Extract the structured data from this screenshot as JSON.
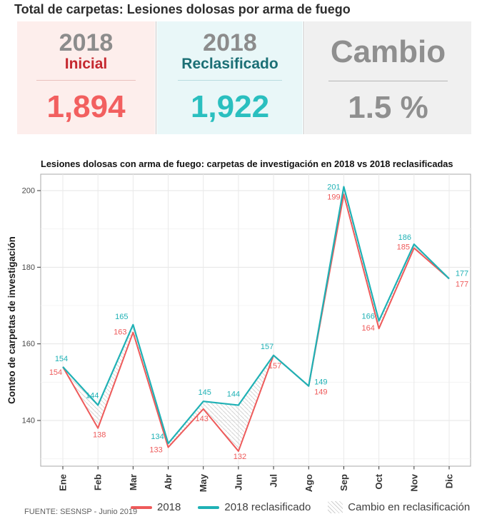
{
  "page_title": "Total de carpetas: Lesiones dolosas por arma de fuego",
  "summary_cards": {
    "initial": {
      "year": "2018",
      "label": "Inicial",
      "value": "1,894"
    },
    "reclassified": {
      "year": "2018",
      "label": "Reclasificado",
      "value": "1,922"
    },
    "change": {
      "label": "Cambio",
      "value": "1.5 %"
    }
  },
  "chart_data": {
    "type": "line",
    "title": "Lesiones dolosas con arma de fuego: carpetas de investigación en 2018 vs 2018 reclasificadas",
    "xlabel": "",
    "ylabel": "Conteo de carpetas de investigación",
    "categories": [
      "Ene",
      "Feb",
      "Mar",
      "Abr",
      "May",
      "Jun",
      "Jul",
      "Ago",
      "Sep",
      "Oct",
      "Nov",
      "Dic"
    ],
    "series": [
      {
        "name": "2018",
        "color": "#ee5a5a",
        "values": [
          154,
          138,
          163,
          133,
          143,
          132,
          157,
          149,
          199,
          164,
          185,
          177
        ]
      },
      {
        "name": "2018 reclasificado",
        "color": "#1fb1b5",
        "values": [
          154,
          144,
          165,
          134,
          145,
          144,
          157,
          149,
          201,
          166,
          186,
          177
        ]
      }
    ],
    "ribbon": {
      "name": "Cambio en reclasificación",
      "style": "diagonal-hatch",
      "color": "#d4d4d4"
    },
    "ylim": [
      128,
      204
    ],
    "yticks": [
      140,
      160,
      180,
      200
    ],
    "grid": true,
    "legend_position": "bottom",
    "point_labels": true
  },
  "source": "FUENTE: SESNSP - Junio 2019",
  "colors": {
    "card_initial_bg": "#fdeeec",
    "card_initial_label": "#c5282f",
    "card_initial_value": "#f25f5f",
    "card_reclass_bg": "#e9f7f8",
    "card_reclass_label": "#1b6f75",
    "card_reclass_value": "#2abfbf",
    "card_change_bg": "#f0f0f0",
    "card_change_text": "#8f8f8f",
    "year_text": "#8c8c8c",
    "series_2018": "#ee5a5a",
    "series_reclassified": "#1fb1b5",
    "hatch": "#d4d4d4"
  }
}
